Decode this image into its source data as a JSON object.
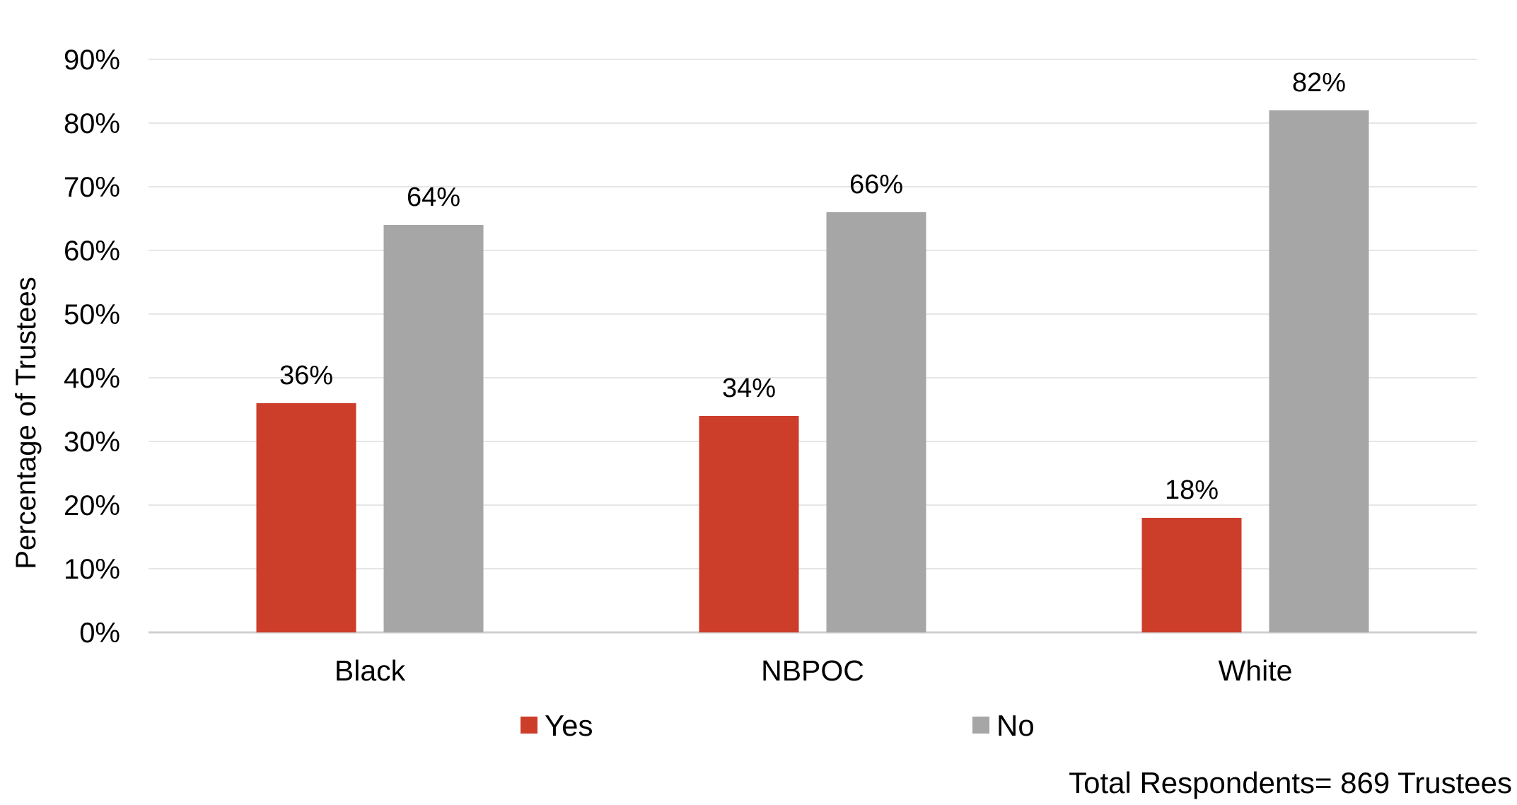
{
  "chart_data": {
    "type": "bar",
    "categories": [
      "Black",
      "NBPOC",
      "White"
    ],
    "series": [
      {
        "name": "Yes",
        "values": [
          36,
          34,
          18
        ],
        "labels": [
          "36%",
          "34%",
          "18%"
        ],
        "color": "#cc3d2a"
      },
      {
        "name": "No",
        "values": [
          64,
          66,
          82
        ],
        "labels": [
          "64%",
          "66%",
          "82%"
        ],
        "color": "#a6a6a6"
      }
    ],
    "ylabel": "Percentage of Trustees",
    "xlabel": "",
    "ylim": [
      0,
      90
    ],
    "yticks": [
      "0%",
      "10%",
      "20%",
      "30%",
      "40%",
      "50%",
      "60%",
      "70%",
      "80%",
      "90%"
    ],
    "grid": true,
    "legend_position": "bottom",
    "note": "Total Respondents= 869 Trustees"
  }
}
